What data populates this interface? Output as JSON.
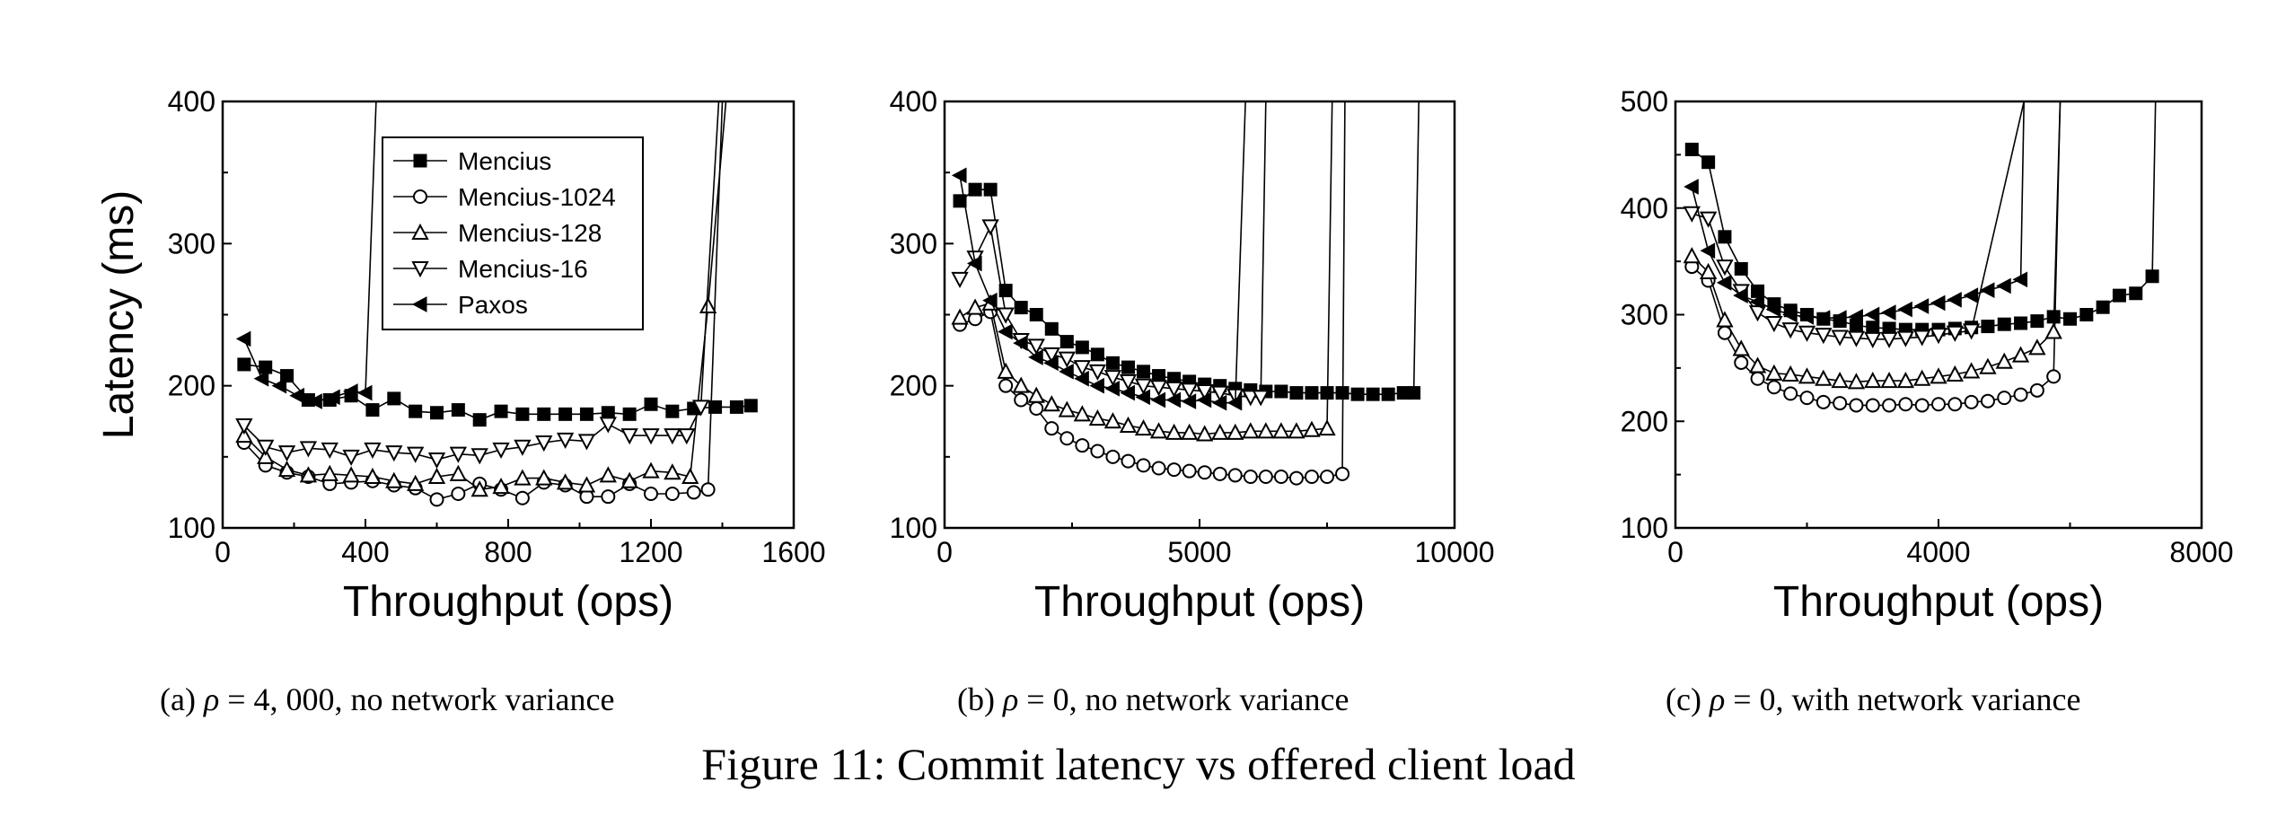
{
  "figure_caption": "Figure 11: Commit latency vs offered client load",
  "colors": {
    "line": "#000000",
    "background": "#ffffff"
  },
  "chart_data": [
    {
      "type": "line",
      "subtitle_prefix": "(a) ",
      "subtitle_symbol": "ρ",
      "subtitle_rest": " = 4, 000, no network variance",
      "xlabel": "Throughput (ops)",
      "ylabel": "Latency (ms)",
      "xlim": [
        0,
        1600
      ],
      "ylim": [
        100,
        400
      ],
      "xticks": [
        0,
        400,
        800,
        1200,
        1600
      ],
      "yticks": [
        100,
        200,
        300,
        400
      ],
      "grid": false,
      "legend": "top-left",
      "series": [
        {
          "name": "Mencius",
          "marker": "square-filled",
          "x": [
            60,
            120,
            180,
            240,
            300,
            360,
            420,
            480,
            540,
            600,
            660,
            720,
            780,
            840,
            900,
            960,
            1020,
            1080,
            1140,
            1200,
            1260,
            1320,
            1380,
            1440,
            1480
          ],
          "y": [
            215,
            213,
            207,
            190,
            190,
            193,
            183,
            191,
            182,
            181,
            183,
            176,
            182,
            180,
            180,
            180,
            180,
            181,
            180,
            187,
            182,
            184,
            185,
            185,
            186
          ]
        },
        {
          "name": "Mencius-1024",
          "marker": "circle-open",
          "x": [
            60,
            120,
            180,
            240,
            300,
            360,
            420,
            480,
            540,
            600,
            660,
            720,
            780,
            840,
            900,
            960,
            1020,
            1080,
            1140,
            1200,
            1260,
            1320,
            1360,
            1400
          ],
          "y": [
            160,
            144,
            139,
            136,
            131,
            132,
            133,
            130,
            128,
            120,
            124,
            131,
            127,
            121,
            132,
            130,
            122,
            122,
            131,
            124,
            124,
            125,
            127,
            400
          ]
        },
        {
          "name": "Mencius-128",
          "marker": "triangle-up-open",
          "x": [
            60,
            120,
            180,
            240,
            300,
            360,
            420,
            480,
            540,
            600,
            660,
            720,
            780,
            840,
            900,
            960,
            1020,
            1080,
            1140,
            1200,
            1260,
            1310,
            1360,
            1410
          ],
          "y": [
            165,
            150,
            141,
            137,
            138,
            137,
            136,
            133,
            131,
            136,
            138,
            127,
            129,
            135,
            135,
            132,
            130,
            137,
            133,
            140,
            139,
            136,
            256,
            400
          ]
        },
        {
          "name": "Mencius-16",
          "marker": "triangle-down-open",
          "x": [
            60,
            120,
            180,
            240,
            300,
            360,
            420,
            480,
            540,
            600,
            660,
            720,
            780,
            840,
            900,
            960,
            1020,
            1080,
            1140,
            1200,
            1260,
            1300,
            1340,
            1390
          ],
          "y": [
            172,
            157,
            153,
            156,
            155,
            150,
            155,
            153,
            152,
            148,
            152,
            151,
            155,
            157,
            160,
            162,
            161,
            173,
            165,
            165,
            165,
            165,
            185,
            400
          ]
        },
        {
          "name": "Paxos",
          "marker": "triangle-left-filled",
          "x": [
            60,
            110,
            160,
            210,
            260,
            310,
            360,
            400,
            430
          ],
          "y": [
            233,
            205,
            200,
            193,
            189,
            192,
            196,
            195,
            400
          ]
        }
      ]
    },
    {
      "type": "line",
      "subtitle_prefix": "(b) ",
      "subtitle_symbol": "ρ",
      "subtitle_rest": " = 0, no network variance",
      "xlabel": "Throughput (ops)",
      "ylabel": "",
      "xlim": [
        0,
        10000
      ],
      "ylim": [
        100,
        400
      ],
      "xticks": [
        0,
        5000,
        10000
      ],
      "yticks": [
        100,
        200,
        300,
        400
      ],
      "grid": false,
      "legend": "none",
      "series": [
        {
          "name": "Mencius",
          "marker": "square-filled",
          "x": [
            300,
            600,
            900,
            1200,
            1500,
            1800,
            2100,
            2400,
            2700,
            3000,
            3300,
            3600,
            3900,
            4200,
            4500,
            4800,
            5100,
            5400,
            5700,
            6000,
            6300,
            6600,
            6900,
            7200,
            7500,
            7800,
            8100,
            8400,
            8700,
            9000,
            9200,
            9300
          ],
          "y": [
            330,
            338,
            338,
            267,
            255,
            250,
            240,
            231,
            227,
            222,
            216,
            213,
            210,
            207,
            205,
            203,
            201,
            200,
            198,
            197,
            196,
            196,
            195,
            195,
            195,
            195,
            194,
            194,
            194,
            195,
            195,
            400
          ]
        },
        {
          "name": "Mencius-1024",
          "marker": "circle-open",
          "x": [
            300,
            600,
            900,
            1200,
            1500,
            1800,
            2100,
            2400,
            2700,
            3000,
            3300,
            3600,
            3900,
            4200,
            4500,
            4800,
            5100,
            5400,
            5700,
            6000,
            6300,
            6600,
            6900,
            7200,
            7500,
            7800,
            7850
          ],
          "y": [
            243,
            247,
            252,
            200,
            190,
            184,
            170,
            163,
            158,
            154,
            150,
            147,
            144,
            142,
            141,
            140,
            139,
            138,
            137,
            136,
            136,
            136,
            135,
            136,
            136,
            138,
            400
          ]
        },
        {
          "name": "Mencius-128",
          "marker": "triangle-up-open",
          "x": [
            300,
            600,
            900,
            1200,
            1500,
            1800,
            2100,
            2400,
            2700,
            3000,
            3300,
            3600,
            3900,
            4200,
            4500,
            4800,
            5100,
            5400,
            5700,
            6000,
            6300,
            6600,
            6900,
            7200,
            7500,
            7600
          ],
          "y": [
            248,
            255,
            258,
            210,
            200,
            193,
            187,
            183,
            180,
            177,
            175,
            172,
            170,
            168,
            167,
            167,
            166,
            167,
            167,
            168,
            168,
            168,
            168,
            169,
            170,
            400
          ]
        },
        {
          "name": "Mencius-16",
          "marker": "triangle-down-open",
          "x": [
            300,
            600,
            900,
            1200,
            1500,
            1800,
            2100,
            2400,
            2700,
            3000,
            3300,
            3600,
            3900,
            4200,
            4500,
            4800,
            5100,
            5400,
            5700,
            6000,
            6200,
            6300
          ],
          "y": [
            275,
            290,
            312,
            250,
            232,
            228,
            222,
            219,
            213,
            210,
            206,
            203,
            200,
            199,
            198,
            197,
            196,
            195,
            193,
            192,
            192,
            400
          ]
        },
        {
          "name": "Paxos",
          "marker": "triangle-left-filled",
          "x": [
            300,
            600,
            900,
            1200,
            1500,
            1800,
            2100,
            2400,
            2700,
            3000,
            3300,
            3600,
            3900,
            4200,
            4500,
            4800,
            5100,
            5400,
            5700,
            5900
          ],
          "y": [
            348,
            286,
            260,
            238,
            230,
            220,
            216,
            210,
            205,
            200,
            198,
            195,
            192,
            190,
            190,
            189,
            190,
            188,
            188,
            400
          ]
        }
      ]
    },
    {
      "type": "line",
      "subtitle_prefix": "(c) ",
      "subtitle_symbol": "ρ",
      "subtitle_rest": " = 0, with network variance",
      "xlabel": "Throughput (ops)",
      "ylabel": "",
      "xlim": [
        0,
        8000
      ],
      "ylim": [
        100,
        500
      ],
      "xticks": [
        0,
        4000,
        8000
      ],
      "yticks": [
        100,
        200,
        300,
        400,
        500
      ],
      "grid": false,
      "legend": "none",
      "series": [
        {
          "name": "Mencius",
          "marker": "square-filled",
          "x": [
            250,
            500,
            750,
            1000,
            1250,
            1500,
            1750,
            2000,
            2250,
            2500,
            2750,
            3000,
            3250,
            3500,
            3750,
            4000,
            4250,
            4500,
            4750,
            5000,
            5250,
            5500,
            5750,
            6000,
            6250,
            6500,
            6750,
            7000,
            7250,
            7300
          ],
          "y": [
            455,
            443,
            373,
            343,
            322,
            310,
            304,
            300,
            296,
            294,
            290,
            288,
            287,
            286,
            286,
            286,
            287,
            288,
            289,
            291,
            292,
            294,
            298,
            296,
            300,
            307,
            318,
            320,
            336,
            500
          ]
        },
        {
          "name": "Mencius-1024",
          "marker": "circle-open",
          "x": [
            250,
            500,
            750,
            1000,
            1250,
            1500,
            1750,
            2000,
            2250,
            2500,
            2750,
            3000,
            3250,
            3500,
            3750,
            4000,
            4250,
            4500,
            4750,
            5000,
            5250,
            5500,
            5750,
            5850
          ],
          "y": [
            345,
            332,
            283,
            255,
            240,
            232,
            226,
            222,
            218,
            217,
            215,
            215,
            215,
            216,
            215,
            216,
            216,
            218,
            219,
            222,
            225,
            229,
            242,
            500
          ]
        },
        {
          "name": "Mencius-128",
          "marker": "triangle-up-open",
          "x": [
            250,
            500,
            750,
            1000,
            1250,
            1500,
            1750,
            2000,
            2250,
            2500,
            2750,
            3000,
            3250,
            3500,
            3750,
            4000,
            4250,
            4500,
            4750,
            5000,
            5250,
            5500,
            5750,
            5850
          ],
          "y": [
            355,
            340,
            295,
            268,
            252,
            245,
            244,
            242,
            240,
            238,
            237,
            238,
            238,
            238,
            240,
            242,
            244,
            247,
            251,
            256,
            262,
            269,
            284,
            500
          ]
        },
        {
          "name": "Mencius-16",
          "marker": "triangle-down-open",
          "x": [
            250,
            500,
            750,
            1000,
            1250,
            1500,
            1750,
            2000,
            2250,
            2500,
            2750,
            3000,
            3250,
            3500,
            3750,
            4000,
            4250,
            4500,
            5300
          ],
          "y": [
            395,
            390,
            345,
            322,
            302,
            292,
            286,
            283,
            281,
            279,
            278,
            277,
            277,
            278,
            279,
            281,
            283,
            285,
            500
          ]
        },
        {
          "name": "Paxos",
          "marker": "triangle-left-filled",
          "x": [
            250,
            500,
            750,
            1000,
            1250,
            1500,
            1750,
            2000,
            2250,
            2500,
            2750,
            3000,
            3250,
            3500,
            3750,
            4000,
            4250,
            4500,
            4750,
            5000,
            5250,
            5300
          ],
          "y": [
            420,
            360,
            330,
            318,
            312,
            305,
            300,
            298,
            297,
            297,
            298,
            300,
            302,
            305,
            308,
            311,
            314,
            318,
            323,
            327,
            333,
            500
          ]
        }
      ]
    }
  ]
}
